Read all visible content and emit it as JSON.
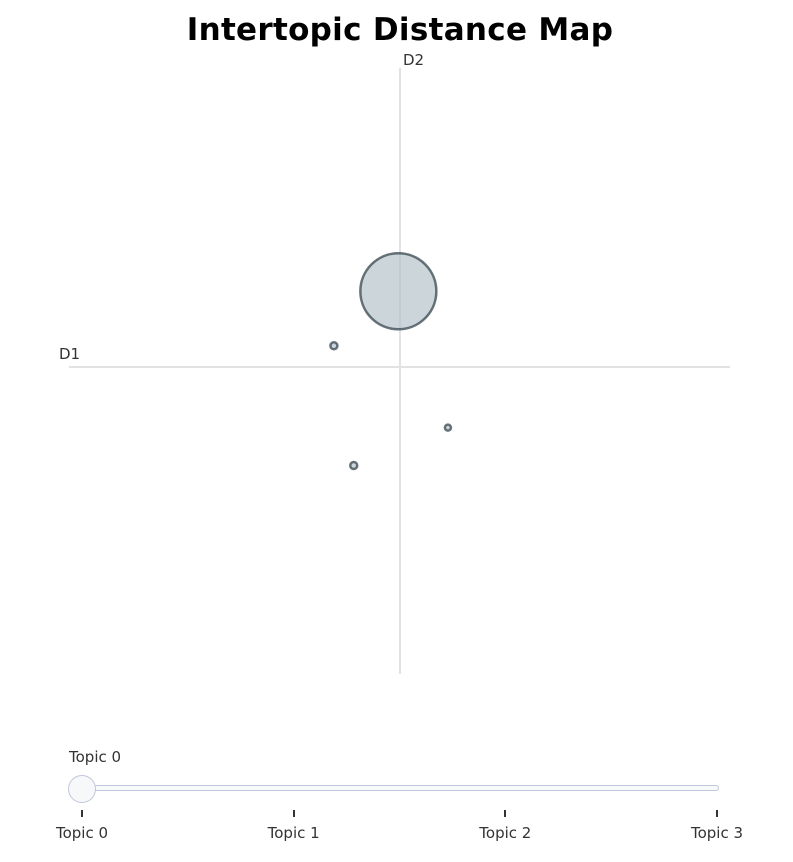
{
  "chart_data": {
    "type": "scatter",
    "title": "Intertopic Distance Map",
    "xlabel": "D1",
    "ylabel": "D2",
    "xlim": [
      -1,
      1
    ],
    "ylim": [
      -1,
      1
    ],
    "grid": false,
    "marker_fill": "#b0bec5",
    "marker_line": "#37474f",
    "zero_line_color": "#e2e2e2",
    "points": [
      {
        "topic": "Topic 0",
        "x": -0.005,
        "y": 0.25,
        "size": 38
      },
      {
        "topic": "Topic 1",
        "x": -0.2,
        "y": 0.07,
        "size": 3.5
      },
      {
        "topic": "Topic 2",
        "x": 0.145,
        "y": -0.2,
        "size": 3
      },
      {
        "topic": "Topic 3",
        "x": -0.14,
        "y": -0.325,
        "size": 3.5
      }
    ]
  },
  "slider": {
    "current_label": "Topic 0",
    "current_index": 0,
    "ticks": [
      "Topic 0",
      "Topic 1",
      "Topic 2",
      "Topic 3"
    ],
    "rail_color": "#f8fafc",
    "border_color": "#bec8d9"
  }
}
